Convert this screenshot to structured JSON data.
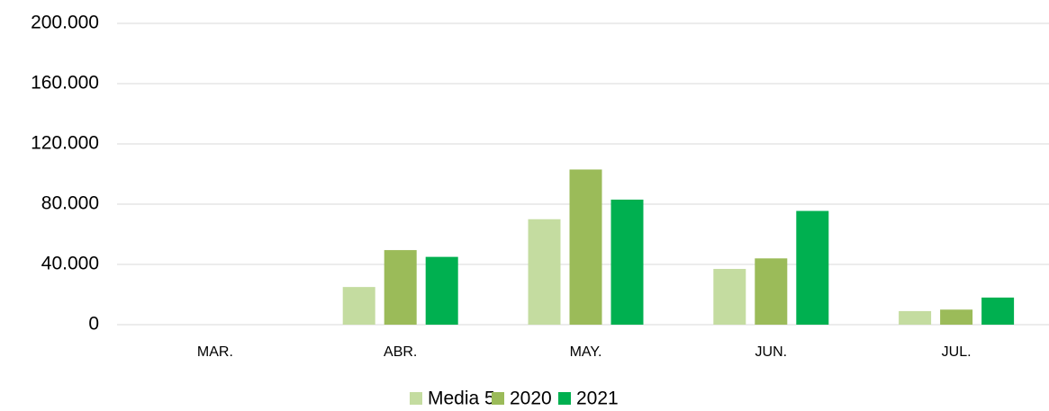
{
  "chart_data": {
    "type": "bar",
    "categories": [
      "MAR.",
      "ABR.",
      "MAY.",
      "JUN.",
      "JUL."
    ],
    "series": [
      {
        "name": "Media 5",
        "color": "#c4dca0",
        "values": [
          0,
          25000,
          70000,
          37000,
          9000
        ]
      },
      {
        "name": "2020",
        "color": "#9bbb59",
        "values": [
          0,
          49500,
          103000,
          44000,
          10000
        ]
      },
      {
        "name": "2021",
        "color": "#00b050",
        "values": [
          0,
          45000,
          83000,
          75500,
          18000
        ]
      }
    ],
    "ylim": [
      0,
      200000
    ],
    "yticks": [
      0,
      {
        "value": 40000,
        "label": "40.000"
      },
      {
        "value": 80000,
        "label": "80.000"
      },
      {
        "value": 120000,
        "label": "120.000"
      },
      {
        "value": 160000,
        "label": "160.000"
      },
      {
        "value": 200000,
        "label": "200.000"
      }
    ],
    "grid": true,
    "legend": "bottom"
  }
}
